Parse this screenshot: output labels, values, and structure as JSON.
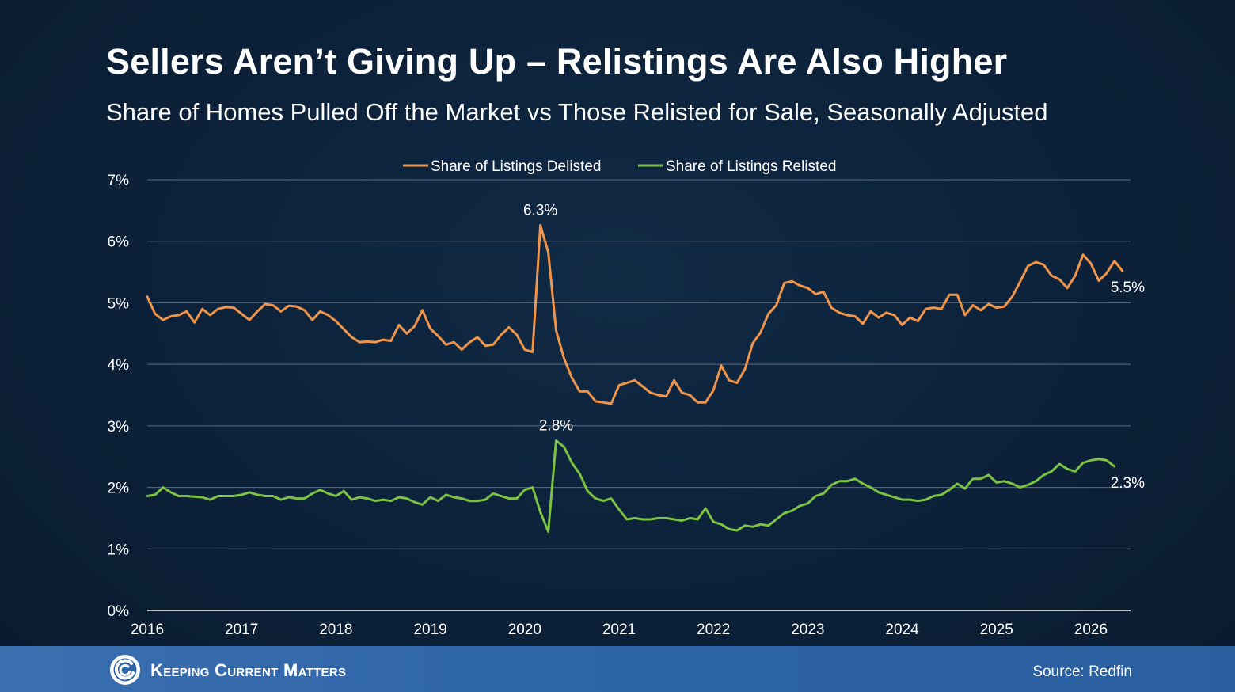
{
  "header": {
    "title": "Sellers Aren’t Giving Up – Relistings Are Also Higher",
    "subtitle": "Share of Homes Pulled Off the Market vs Those Relisted for Sale, Seasonally Adjusted"
  },
  "footer": {
    "brand": "Keeping Current Matters",
    "source": "Source: Redfin"
  },
  "colors": {
    "delisted": "#f0954a",
    "relisted": "#7cc243",
    "grid": "#5a6b80",
    "axis": "#ffffff"
  },
  "chart_data": {
    "type": "line",
    "title": "Sellers Aren’t Giving Up – Relistings Are Also Higher",
    "subtitle": "Share of Homes Pulled Off the Market vs Those Relisted for Sale, Seasonally Adjusted",
    "xlabel": "",
    "ylabel": "",
    "x_range": [
      2016,
      2026.42
    ],
    "ylim": [
      0,
      7
    ],
    "y_ticks": [
      "0%",
      "1%",
      "2%",
      "3%",
      "4%",
      "5%",
      "6%",
      "7%"
    ],
    "x_ticks": [
      "2016",
      "2017",
      "2018",
      "2019",
      "2020",
      "2021",
      "2022",
      "2023",
      "2024",
      "2025",
      "2026"
    ],
    "grid": true,
    "legend_position": "top-center",
    "start": "2016-01",
    "frequency": "monthly",
    "series": [
      {
        "name": "Share of Listings Delisted",
        "color": "#f0954a",
        "values": [
          5.1,
          4.82,
          4.72,
          4.78,
          4.8,
          4.86,
          4.68,
          4.9,
          4.8,
          4.9,
          4.93,
          4.92,
          4.82,
          4.72,
          4.86,
          4.98,
          4.96,
          4.86,
          4.95,
          4.94,
          4.88,
          4.72,
          4.86,
          4.8,
          4.7,
          4.57,
          4.44,
          4.36,
          4.37,
          4.36,
          4.4,
          4.38,
          4.64,
          4.5,
          4.62,
          4.88,
          4.58,
          4.46,
          4.32,
          4.36,
          4.24,
          4.36,
          4.44,
          4.3,
          4.32,
          4.48,
          4.6,
          4.48,
          4.24,
          4.2,
          6.26,
          5.82,
          4.55,
          4.1,
          3.78,
          3.56,
          3.56,
          3.4,
          3.38,
          3.36,
          3.66,
          3.7,
          3.74,
          3.64,
          3.54,
          3.5,
          3.48,
          3.74,
          3.54,
          3.5,
          3.38,
          3.38,
          3.58,
          3.98,
          3.74,
          3.7,
          3.92,
          4.34,
          4.52,
          4.82,
          4.96,
          5.32,
          5.35,
          5.28,
          5.24,
          5.14,
          5.18,
          4.92,
          4.84,
          4.8,
          4.78,
          4.66,
          4.86,
          4.76,
          4.84,
          4.8,
          4.64,
          4.76,
          4.7,
          4.9,
          4.92,
          4.9,
          5.13,
          5.13,
          4.8,
          4.96,
          4.88,
          4.98,
          4.92,
          4.94,
          5.1,
          5.34,
          5.6,
          5.66,
          5.62,
          5.44,
          5.38,
          5.24,
          5.44,
          5.78,
          5.64,
          5.36,
          5.48,
          5.68,
          5.52
        ],
        "end_label": "5.5%",
        "peak_label": "6.3%"
      },
      {
        "name": "Share of Listings Relisted",
        "color": "#7cc243",
        "values": [
          1.86,
          1.88,
          2.0,
          1.92,
          1.86,
          1.86,
          1.85,
          1.84,
          1.8,
          1.86,
          1.86,
          1.86,
          1.88,
          1.92,
          1.88,
          1.86,
          1.86,
          1.8,
          1.84,
          1.82,
          1.82,
          1.9,
          1.96,
          1.9,
          1.86,
          1.94,
          1.8,
          1.84,
          1.82,
          1.78,
          1.8,
          1.78,
          1.84,
          1.82,
          1.76,
          1.72,
          1.84,
          1.78,
          1.88,
          1.84,
          1.82,
          1.78,
          1.78,
          1.8,
          1.9,
          1.86,
          1.82,
          1.82,
          1.96,
          2.0,
          1.6,
          1.28,
          2.76,
          2.66,
          2.4,
          2.22,
          1.94,
          1.82,
          1.78,
          1.82,
          1.64,
          1.48,
          1.5,
          1.48,
          1.48,
          1.5,
          1.5,
          1.48,
          1.46,
          1.5,
          1.48,
          1.66,
          1.44,
          1.4,
          1.32,
          1.3,
          1.38,
          1.36,
          1.4,
          1.38,
          1.48,
          1.58,
          1.62,
          1.7,
          1.74,
          1.86,
          1.9,
          2.04,
          2.1,
          2.1,
          2.14,
          2.06,
          2.0,
          1.92,
          1.88,
          1.84,
          1.8,
          1.8,
          1.78,
          1.8,
          1.86,
          1.88,
          1.96,
          2.06,
          1.98,
          2.14,
          2.14,
          2.2,
          2.08,
          2.1,
          2.06,
          2.0,
          2.04,
          2.1,
          2.2,
          2.26,
          2.38,
          2.3,
          2.26,
          2.4,
          2.44,
          2.46,
          2.44,
          2.34
        ],
        "end_label": "2.3%",
        "peak_label": "2.8%"
      }
    ]
  }
}
